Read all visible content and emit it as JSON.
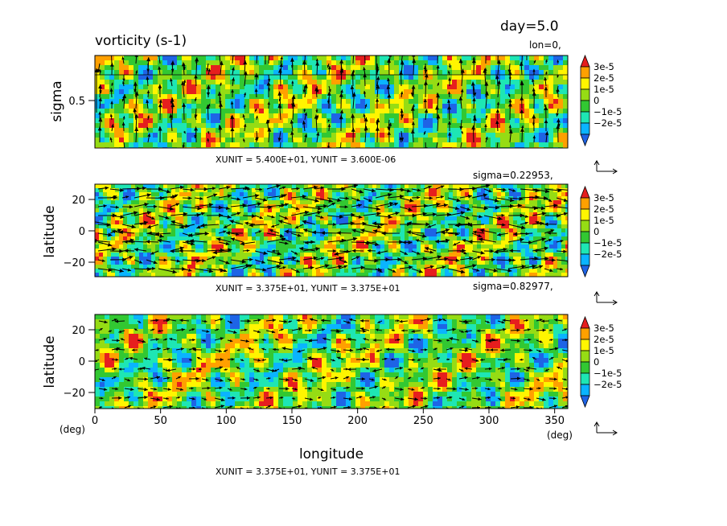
{
  "header": {
    "title": "vorticity (s-1)",
    "day_label": "day=5.0"
  },
  "chart_data": [
    {
      "type": "heatmap",
      "panel": "top",
      "slice_label": "lon=0,",
      "ylabel": "sigma",
      "yticks": [
        "0.5"
      ],
      "ylim": [
        0,
        1
      ],
      "vector_scale": "XUNIT = 5.400E+01, YUNIT = 3.600E-06",
      "colorbar": [
        "3e-5",
        "2e-5",
        "1e-5",
        "0",
        "−1e-5",
        "−2e-5"
      ]
    },
    {
      "type": "heatmap",
      "panel": "middle",
      "slice_label": "sigma=0.22953,",
      "ylabel": "latitude",
      "yticks": [
        "20",
        "0",
        "−20"
      ],
      "ylim": [
        -30,
        30
      ],
      "xlim": [
        0,
        360
      ],
      "vector_scale": "XUNIT = 3.375E+01, YUNIT = 3.375E+01",
      "colorbar": [
        "3e-5",
        "2e-5",
        "1e-5",
        "0",
        "−1e-5",
        "−2e-5"
      ]
    },
    {
      "type": "heatmap",
      "panel": "bottom",
      "slice_label": "sigma=0.82977,",
      "ylabel": "latitude",
      "yticks": [
        "20",
        "0",
        "−20"
      ],
      "xticks": [
        "0",
        "50",
        "100",
        "150",
        "200",
        "250",
        "300",
        "350"
      ],
      "ylim": [
        -30,
        30
      ],
      "xlim": [
        0,
        360
      ],
      "xlabel": "longitude",
      "x_unit": "(deg)",
      "y_unit": "(deg)",
      "vector_scale": "XUNIT = 3.375E+01, YUNIT = 3.375E+01",
      "colorbar": [
        "3e-5",
        "2e-5",
        "1e-5",
        "0",
        "−1e-5",
        "−2e-5"
      ]
    }
  ],
  "palette": [
    "#1e64e6",
    "#0ab4ff",
    "#1ee6b4",
    "#32c832",
    "#96dc14",
    "#fff500",
    "#ffa000",
    "#e61e1e"
  ]
}
